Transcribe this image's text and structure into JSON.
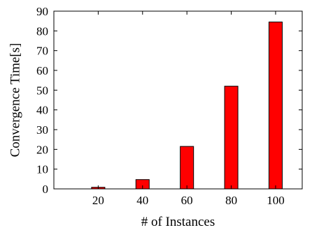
{
  "chart_data": {
    "type": "bar",
    "categories": [
      "20",
      "40",
      "60",
      "80",
      "100"
    ],
    "values": [
      0.8,
      4.7,
      21.5,
      52.0,
      84.5
    ],
    "title": "",
    "xlabel": "# of Instances",
    "ylabel": "Convergence Time[s]",
    "ylim": [
      0,
      90
    ],
    "yticks": [
      0,
      10,
      20,
      30,
      40,
      50,
      60,
      70,
      80,
      90
    ],
    "xlim": [
      0,
      112
    ],
    "x_positions": [
      20,
      40,
      60,
      80,
      100
    ],
    "bar_width_units": 6,
    "grid": false,
    "bar_color": "#ff0000",
    "bar_edge_color": "#000000"
  }
}
